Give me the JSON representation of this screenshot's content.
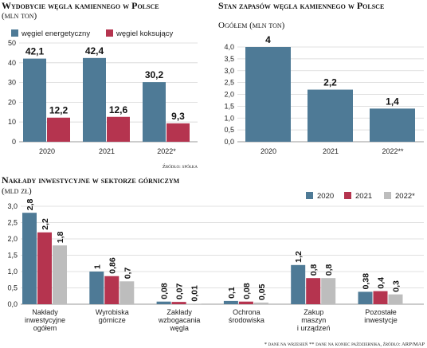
{
  "colors": {
    "energetyczny": "#4e7a96",
    "koksujacy": "#b5344f",
    "stock": "#4e7a96",
    "y2020": "#4e7a96",
    "y2021": "#b5344f",
    "y2022": "#bdbdbd"
  },
  "source": "Źródło: spółka",
  "footnote": "* dane na wrzesień ** dane na koniec października, źródło: ARP/MAP",
  "chart_data": [
    {
      "type": "bar",
      "title": "Wydobycie węgla kamiennego w Polsce",
      "subtitle": "(mln ton)",
      "categories": [
        "2020",
        "2021",
        "2022*"
      ],
      "series": [
        {
          "name": "węgiel energetyczny",
          "values": [
            42.1,
            42.4,
            30.2
          ],
          "labels": [
            "42,1",
            "42,4",
            "30,2"
          ]
        },
        {
          "name": "węgiel koksujący",
          "values": [
            12.2,
            12.6,
            9.3
          ],
          "labels": [
            "12,2",
            "12,6",
            "9,3"
          ]
        }
      ],
      "yticks": [
        "0",
        "10",
        "20",
        "30",
        "40",
        "50"
      ],
      "ylim": [
        0,
        50
      ],
      "grid": true,
      "legend": "top"
    },
    {
      "type": "bar",
      "title": "Stan zapasów węgla kamiennego w Polsce",
      "subtitle": "Ogółem (mln ton)",
      "categories": [
        "2020",
        "2021",
        "2022**"
      ],
      "series": [
        {
          "values": [
            4,
            2.2,
            1.4
          ],
          "labels": [
            "4",
            "2,2",
            "1,4"
          ]
        }
      ],
      "yticks": [
        "0,0",
        "0,5",
        "1,0",
        "1,5",
        "2,0",
        "2,5",
        "3,0",
        "3,5",
        "4,0"
      ],
      "ylim": [
        0,
        4
      ],
      "grid": true,
      "legend": "none"
    },
    {
      "type": "bar",
      "title": "Nakłady inwestycyjne w sektorze górniczym",
      "subtitle": "(mld zł)",
      "categories": [
        [
          "Nakłady",
          "inwestycyjne",
          "ogółem"
        ],
        [
          "Wyrobiska",
          "górnicze"
        ],
        [
          "Zakłady",
          "wzbogacania",
          "węgla"
        ],
        [
          "Ochrona",
          "środowiska"
        ],
        [
          "Zakup",
          "maszyn",
          "i urządzeń"
        ],
        [
          "Pozostałe",
          "inwestycje"
        ]
      ],
      "series": [
        {
          "name": "2020",
          "values": [
            2.8,
            1,
            0.08,
            0.1,
            1.2,
            0.38
          ],
          "labels": [
            "2,8",
            "1",
            "0,08",
            "0,1",
            "1,2",
            "0,38"
          ]
        },
        {
          "name": "2021",
          "values": [
            2.2,
            0.86,
            0.07,
            0.08,
            0.8,
            0.4
          ],
          "labels": [
            "2,2",
            "0,86",
            "0,07",
            "0,08",
            "0,8",
            "0,4"
          ]
        },
        {
          "name": "2022*",
          "values": [
            1.8,
            0.7,
            0.01,
            0.05,
            0.8,
            0.3
          ],
          "labels": [
            "1,8",
            "0,7",
            "0,01",
            "0,05",
            "0,8",
            "0,3"
          ]
        }
      ],
      "yticks": [
        "0,0",
        "0,5",
        "1,0",
        "1,5",
        "2,0",
        "2,5",
        "3,0"
      ],
      "ylim": [
        0,
        3
      ],
      "grid": true,
      "legend": "top-right"
    }
  ]
}
